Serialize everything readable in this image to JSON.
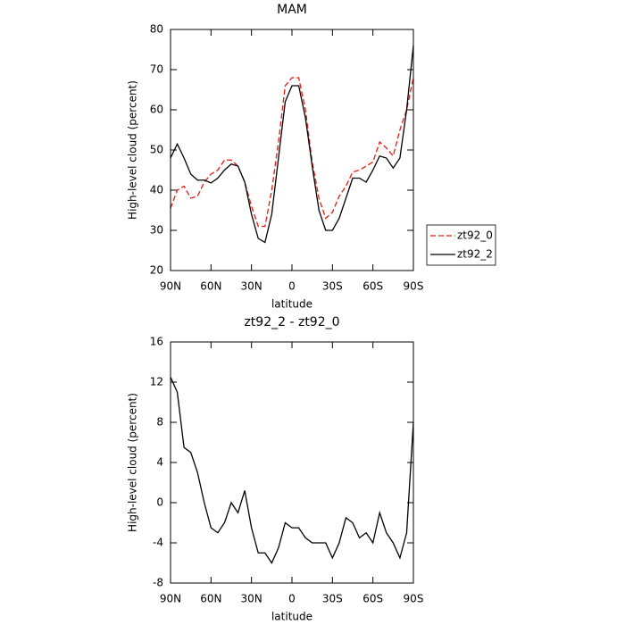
{
  "chart_data": [
    {
      "type": "line",
      "title": "MAM",
      "ylabel": "High-level cloud (percent)",
      "xlabel": "latitude",
      "x": [
        90,
        85,
        80,
        75,
        70,
        65,
        60,
        55,
        50,
        45,
        40,
        35,
        30,
        25,
        20,
        15,
        10,
        5,
        0,
        -5,
        -10,
        -15,
        -20,
        -25,
        -30,
        -35,
        -40,
        -45,
        -50,
        -55,
        -60,
        -65,
        -70,
        -75,
        -80,
        -85,
        -90
      ],
      "xlim": [
        90,
        -90
      ],
      "xticks": [
        {
          "value": 90,
          "label": "90N"
        },
        {
          "value": 60,
          "label": "60N"
        },
        {
          "value": 30,
          "label": "30N"
        },
        0,
        {
          "value": -30,
          "label": "30S"
        },
        {
          "value": -60,
          "label": "60S"
        },
        {
          "value": -90,
          "label": "90S"
        }
      ],
      "ylim": [
        20,
        80
      ],
      "yticks": [
        20,
        30,
        40,
        50,
        60,
        70,
        80
      ],
      "legend": "right",
      "series": [
        {
          "name": "zt92_0",
          "color": "#e8190f",
          "dashed": true,
          "values": [
            35.5,
            40,
            41,
            38,
            38.5,
            42,
            44,
            45,
            47.5,
            47.5,
            46,
            42,
            36,
            31,
            31,
            40,
            52,
            66,
            68,
            68,
            60,
            47,
            38,
            33,
            34.5,
            38.5,
            41,
            44.5,
            45,
            46,
            47,
            52,
            50.5,
            48.5,
            55,
            60,
            68
          ]
        },
        {
          "name": "zt92_2",
          "color": "#000000",
          "dashed": false,
          "values": [
            48,
            51.5,
            48,
            44,
            42.5,
            42.5,
            41.8,
            43,
            45,
            46.5,
            46,
            42,
            34,
            28,
            27,
            34,
            48,
            62,
            66,
            66,
            58,
            46,
            35,
            30,
            30,
            33,
            38,
            43,
            43,
            42,
            45,
            48.5,
            48,
            45.5,
            48,
            60,
            76
          ]
        }
      ]
    },
    {
      "type": "line",
      "title": "zt92_2 - zt92_0",
      "ylabel": "High-level cloud (percent)",
      "xlabel": "latitude",
      "x": [
        90,
        85,
        80,
        75,
        70,
        65,
        60,
        55,
        50,
        45,
        40,
        35,
        30,
        25,
        20,
        15,
        10,
        5,
        0,
        -5,
        -10,
        -15,
        -20,
        -25,
        -30,
        -35,
        -40,
        -45,
        -50,
        -55,
        -60,
        -65,
        -70,
        -75,
        -80,
        -85,
        -90
      ],
      "xlim": [
        90,
        -90
      ],
      "xticks": [
        {
          "value": 90,
          "label": "90N"
        },
        {
          "value": 60,
          "label": "60N"
        },
        {
          "value": 30,
          "label": "30N"
        },
        0,
        {
          "value": -30,
          "label": "30S"
        },
        {
          "value": -60,
          "label": "60S"
        },
        {
          "value": -90,
          "label": "90S"
        }
      ],
      "ylim": [
        -8,
        16
      ],
      "yticks": [
        -8,
        -4,
        0,
        4,
        8,
        12,
        16
      ],
      "series": [
        {
          "color": "#000000",
          "dashed": false,
          "values": [
            12.5,
            11,
            5.5,
            5,
            3,
            0,
            -2.5,
            -3,
            -2,
            0,
            -1,
            1.2,
            -2.5,
            -5,
            -5,
            -6,
            -4.5,
            -2,
            -2.5,
            -2.5,
            -3.5,
            -4,
            -4,
            -4,
            -5.5,
            -4,
            -1.5,
            -2,
            -3.5,
            -3,
            -4,
            -1,
            -3,
            -4,
            -5.5,
            -3,
            8
          ]
        }
      ]
    }
  ]
}
